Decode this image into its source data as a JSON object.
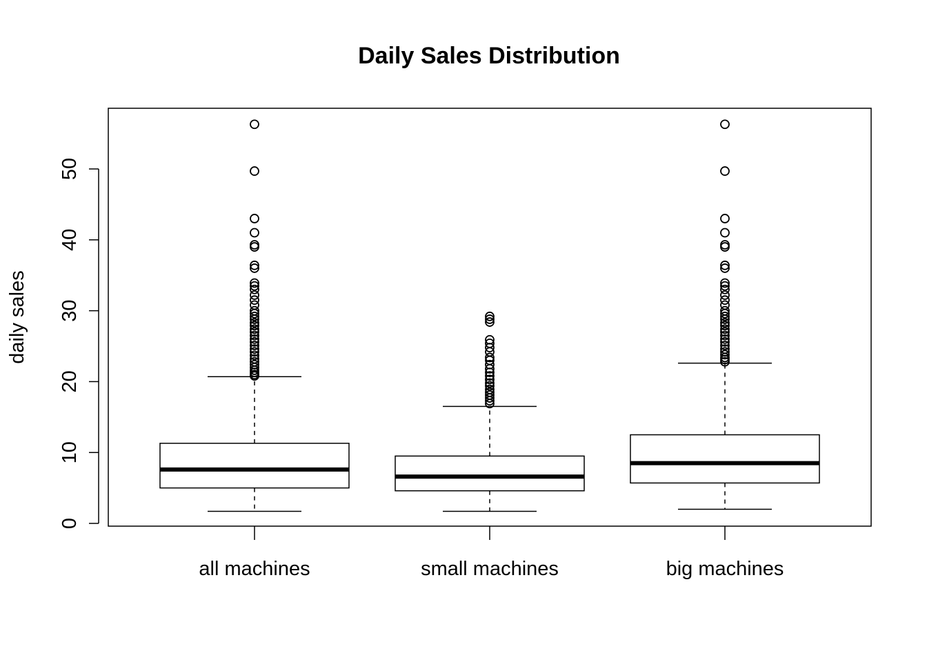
{
  "chart_data": {
    "type": "boxplot",
    "title": "Daily Sales Distribution",
    "xlabel": "",
    "ylabel": "daily sales",
    "ylim": [
      0,
      56.5
    ],
    "yticks": [
      0,
      10,
      20,
      30,
      40,
      50
    ],
    "ytick_labels": [
      "0",
      "10",
      "20",
      "30",
      "40",
      "50"
    ],
    "grid": false,
    "legend": "none",
    "categories": [
      "all machines",
      "small machines",
      "big machines"
    ],
    "boxes": [
      {
        "name": "all machines",
        "whisker_low": 1.7,
        "q1": 5.0,
        "median": 7.6,
        "q3": 11.3,
        "whisker_high": 20.7,
        "outliers": [
          20.8,
          21.0,
          21.3,
          21.6,
          22.0,
          22.4,
          22.8,
          23.2,
          23.7,
          24.2,
          24.6,
          25.1,
          25.6,
          26.0,
          26.5,
          27.0,
          27.4,
          27.9,
          28.3,
          28.8,
          29.2,
          29.6,
          30.0,
          30.8,
          31.5,
          32.2,
          33.0,
          33.5,
          33.9,
          36.0,
          36.4,
          39.0,
          39.3,
          41.0,
          43.0,
          49.7,
          56.3
        ]
      },
      {
        "name": "small machines",
        "whisker_low": 1.7,
        "q1": 4.6,
        "median": 6.6,
        "q3": 9.5,
        "whisker_high": 16.5,
        "outliers": [
          16.9,
          17.3,
          17.7,
          18.1,
          18.5,
          18.9,
          19.4,
          19.8,
          20.3,
          20.8,
          21.3,
          21.8,
          22.4,
          23.0,
          23.4,
          24.2,
          24.8,
          25.4,
          25.9,
          28.4,
          28.8,
          29.2
        ]
      },
      {
        "name": "big machines",
        "whisker_low": 2.0,
        "q1": 5.7,
        "median": 8.5,
        "q3": 12.5,
        "whisker_high": 22.6,
        "outliers": [
          22.8,
          23.1,
          23.4,
          23.8,
          24.2,
          24.6,
          25.1,
          25.6,
          26.0,
          26.5,
          27.0,
          27.4,
          27.9,
          28.3,
          28.8,
          29.2,
          29.6,
          30.0,
          30.8,
          31.5,
          32.2,
          33.0,
          33.5,
          33.9,
          36.0,
          36.4,
          39.0,
          39.3,
          41.0,
          43.0,
          49.7,
          56.3
        ]
      }
    ]
  }
}
